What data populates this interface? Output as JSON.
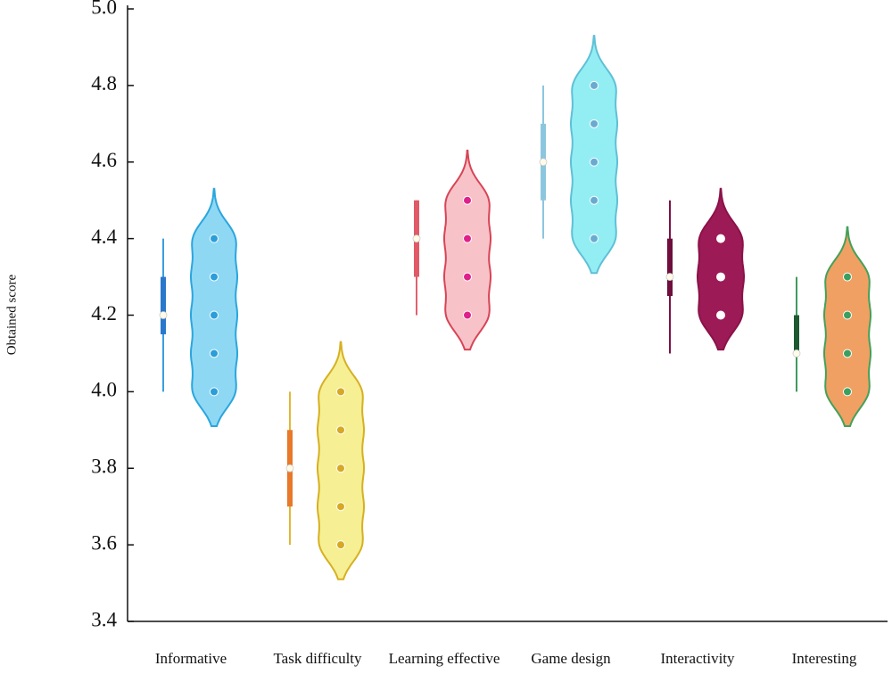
{
  "chart_data": {
    "type": "violin",
    "y_label": "Obtained score",
    "categories": [
      "Informative",
      "Task difficulty",
      "Learning effective",
      "Game design",
      "Interactivity",
      "Interesting"
    ],
    "boxes": [
      {
        "min": 4.0,
        "q1": 4.15,
        "median": 4.2,
        "q3": 4.3,
        "max": 4.4
      },
      {
        "min": 3.6,
        "q1": 3.7,
        "median": 3.8,
        "q3": 3.9,
        "max": 4.0
      },
      {
        "min": 4.2,
        "q1": 4.3,
        "median": 4.4,
        "q3": 4.5,
        "max": 4.5
      },
      {
        "min": 4.4,
        "q1": 4.5,
        "median": 4.6,
        "q3": 4.7,
        "max": 4.8
      },
      {
        "min": 4.1,
        "q1": 4.25,
        "median": 4.3,
        "q3": 4.4,
        "max": 4.5
      },
      {
        "min": 4.0,
        "q1": 4.1,
        "median": 4.1,
        "q3": 4.2,
        "max": 4.3
      }
    ],
    "points": [
      [
        4.0,
        4.1,
        4.2,
        4.3,
        4.4
      ],
      [
        3.6,
        3.7,
        3.8,
        3.9,
        4.0
      ],
      [
        4.2,
        4.3,
        4.4,
        4.5
      ],
      [
        4.4,
        4.5,
        4.6,
        4.7,
        4.8
      ],
      [
        4.2,
        4.3,
        4.4
      ],
      [
        4.0,
        4.1,
        4.2,
        4.3
      ]
    ],
    "box_colors": [
      "#2a78cc",
      "#e8782a",
      "#e05a68",
      "#8cc6de",
      "#6e0e3c",
      "#1d5a30"
    ],
    "whisker_colors": [
      "#3a9ee0",
      "#e0b838",
      "#e06070",
      "#8cc6de",
      "#7a1446",
      "#3f9a5e"
    ],
    "violin_colors": [
      "#8fd8f4",
      "#f6ef94",
      "#f7c3c8",
      "#93eef4",
      "#9c1a56",
      "#f0a062"
    ],
    "edge_colors": [
      "#2aa6de",
      "#d6b022",
      "#d84456",
      "#5fc0d6",
      "#8a1248",
      "#44a05a"
    ],
    "point_colors": [
      "#2a9ed8",
      "#d6a824",
      "#e0208a",
      "#6aaad0",
      "#ffffff",
      "#3aa060"
    ],
    "ylim": [
      3.4,
      5.0
    ],
    "yticks": [
      3.4,
      3.6,
      3.8,
      {
        "value": 4.0,
        "label": "4.0"
      },
      4.2,
      4.4,
      4.6,
      4.8,
      {
        "value": 5.0,
        "label": "5.0"
      }
    ]
  }
}
